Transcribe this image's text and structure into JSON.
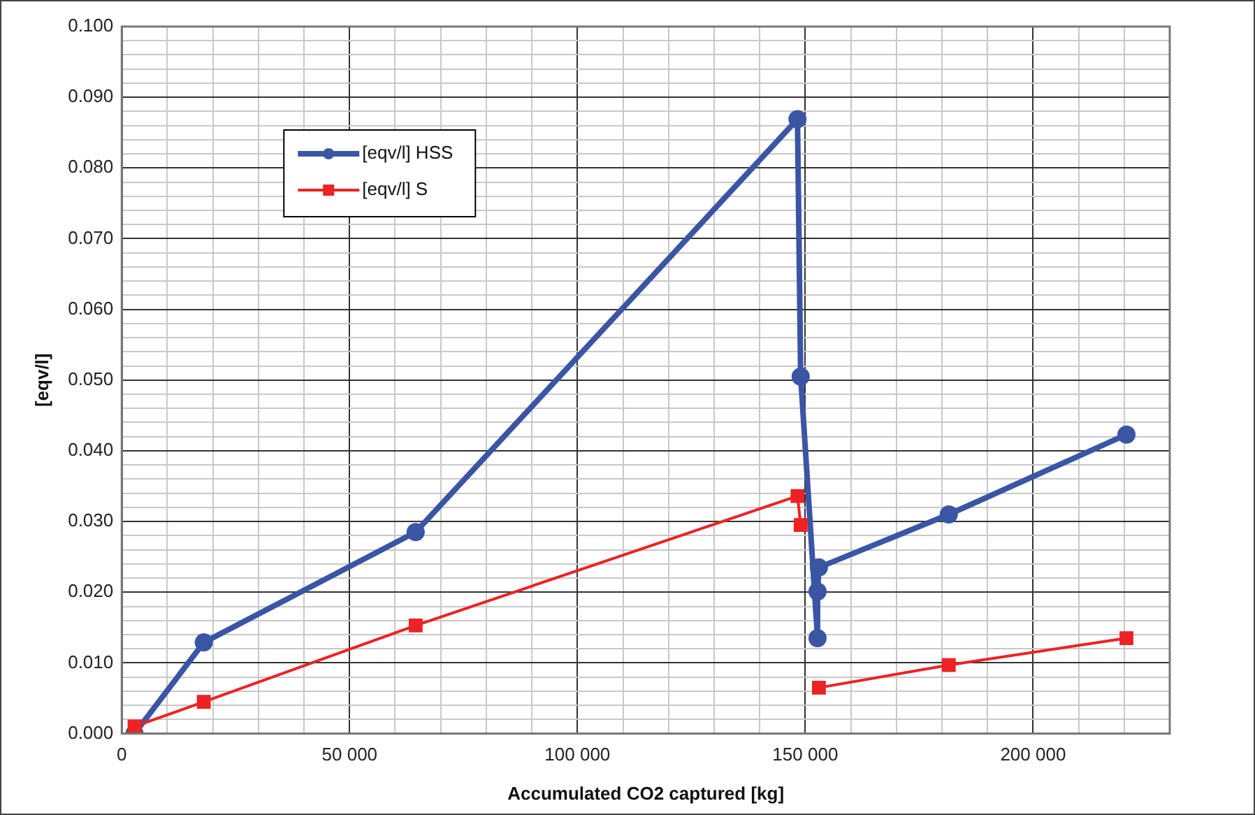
{
  "chart_data": {
    "type": "line",
    "xlabel": "Accumulated CO2 captured [kg]",
    "ylabel": "[eqv/l]",
    "x": [
      2800,
      18000,
      64500,
      148300,
      149000,
      152700,
      152700,
      153000,
      181500,
      220500
    ],
    "series": [
      {
        "name": "[eqv/l] HSS",
        "color": "#3a55a4",
        "marker": "circle",
        "values": [
          0.0,
          0.0129,
          0.0285,
          0.0869,
          0.0505,
          0.0135,
          0.0201,
          0.0235,
          0.031,
          0.0423
        ]
      },
      {
        "name": "[eqv/l] S",
        "color": "#ed2224",
        "marker": "square",
        "values": [
          0.001,
          0.0045,
          0.0153,
          0.0336,
          0.0295,
          null,
          null,
          0.0065,
          0.0097,
          0.0135
        ]
      }
    ],
    "xlim": [
      0,
      230000
    ],
    "xticks": [
      {
        "value": 0,
        "label": "0"
      },
      {
        "value": 10000,
        "label": null
      },
      {
        "value": 20000,
        "label": null
      },
      {
        "value": 30000,
        "label": null
      },
      {
        "value": 40000,
        "label": null
      },
      {
        "value": 50000,
        "label": "50 000"
      },
      {
        "value": 60000,
        "label": null
      },
      {
        "value": 70000,
        "label": null
      },
      {
        "value": 80000,
        "label": null
      },
      {
        "value": 90000,
        "label": null
      },
      {
        "value": 100000,
        "label": "100 000"
      },
      {
        "value": 110000,
        "label": null
      },
      {
        "value": 120000,
        "label": null
      },
      {
        "value": 130000,
        "label": null
      },
      {
        "value": 140000,
        "label": null
      },
      {
        "value": 150000,
        "label": "150 000"
      },
      {
        "value": 160000,
        "label": null
      },
      {
        "value": 170000,
        "label": null
      },
      {
        "value": 180000,
        "label": null
      },
      {
        "value": 190000,
        "label": null
      },
      {
        "value": 200000,
        "label": "200 000"
      },
      {
        "value": 210000,
        "label": null
      },
      {
        "value": 220000,
        "label": null
      }
    ],
    "ylim": [
      0,
      0.1
    ],
    "yticks": [
      {
        "value": 0,
        "label": "0.000"
      },
      {
        "value": 0.002,
        "label": null
      },
      {
        "value": 0.004,
        "label": null
      },
      {
        "value": 0.006,
        "label": null
      },
      {
        "value": 0.008,
        "label": null
      },
      {
        "value": 0.01,
        "label": "0.010"
      },
      {
        "value": 0.012,
        "label": null
      },
      {
        "value": 0.014,
        "label": null
      },
      {
        "value": 0.016,
        "label": null
      },
      {
        "value": 0.018,
        "label": null
      },
      {
        "value": 0.02,
        "label": "0.020"
      },
      {
        "value": 0.022,
        "label": null
      },
      {
        "value": 0.024,
        "label": null
      },
      {
        "value": 0.026,
        "label": null
      },
      {
        "value": 0.028,
        "label": null
      },
      {
        "value": 0.03,
        "label": "0.030"
      },
      {
        "value": 0.032,
        "label": null
      },
      {
        "value": 0.034,
        "label": null
      },
      {
        "value": 0.036,
        "label": null
      },
      {
        "value": 0.038,
        "label": null
      },
      {
        "value": 0.04,
        "label": "0.040"
      },
      {
        "value": 0.042,
        "label": null
      },
      {
        "value": 0.044,
        "label": null
      },
      {
        "value": 0.046,
        "label": null
      },
      {
        "value": 0.048,
        "label": null
      },
      {
        "value": 0.05,
        "label": "0.050"
      },
      {
        "value": 0.052,
        "label": null
      },
      {
        "value": 0.054,
        "label": null
      },
      {
        "value": 0.056,
        "label": null
      },
      {
        "value": 0.058,
        "label": null
      },
      {
        "value": 0.06,
        "label": "0.060"
      },
      {
        "value": 0.062,
        "label": null
      },
      {
        "value": 0.064,
        "label": null
      },
      {
        "value": 0.066,
        "label": null
      },
      {
        "value": 0.068,
        "label": null
      },
      {
        "value": 0.07,
        "label": "0.070"
      },
      {
        "value": 0.072,
        "label": null
      },
      {
        "value": 0.074,
        "label": null
      },
      {
        "value": 0.076,
        "label": null
      },
      {
        "value": 0.078,
        "label": null
      },
      {
        "value": 0.08,
        "label": "0.080"
      },
      {
        "value": 0.082,
        "label": null
      },
      {
        "value": 0.084,
        "label": null
      },
      {
        "value": 0.086,
        "label": null
      },
      {
        "value": 0.088,
        "label": null
      },
      {
        "value": 0.09,
        "label": "0.090"
      },
      {
        "value": 0.092,
        "label": null
      },
      {
        "value": 0.094,
        "label": null
      },
      {
        "value": 0.096,
        "label": null
      },
      {
        "value": 0.098,
        "label": null
      },
      {
        "value": 0.1,
        "label": "0.100"
      }
    ],
    "grid": true,
    "legend": "top left",
    "line_style": "solid"
  }
}
